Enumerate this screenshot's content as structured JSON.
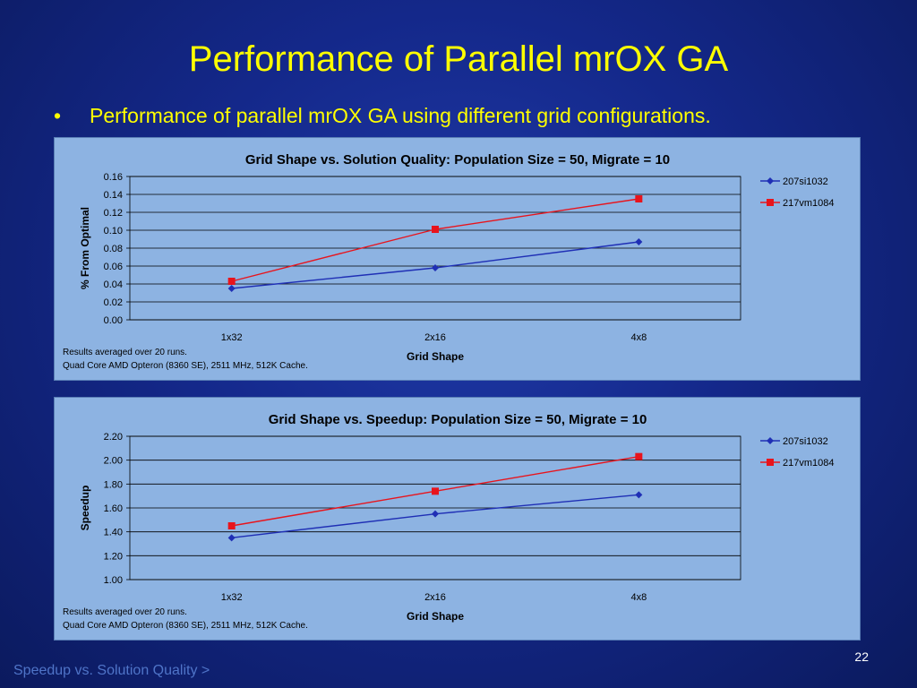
{
  "slide": {
    "title": "Performance of Parallel mrOX GA",
    "bullet": "Performance of parallel mrOX GA using different grid configurations.",
    "bullet_symbol": "•",
    "page_number": "22",
    "nav_link": "Speedup vs. Solution Quality >"
  },
  "chart_data": [
    {
      "type": "line",
      "title": "Grid Shape vs. Solution Quality: Population Size = 50, Migrate = 10",
      "xlabel": "Grid Shape",
      "ylabel": "% From Optimal",
      "categories": [
        "1x32",
        "2x16",
        "4x8"
      ],
      "ylim": [
        0,
        0.16
      ],
      "ystep": 0.02,
      "ydecimals": 2,
      "grid": true,
      "legend": "right",
      "series": [
        {
          "name": "207si1032",
          "values": [
            0.035,
            0.058,
            0.087
          ],
          "color": "#1f2fb5",
          "marker": "diamond"
        },
        {
          "name": "217vm1084",
          "values": [
            0.043,
            0.101,
            0.135
          ],
          "color": "#e8141c",
          "marker": "square"
        }
      ],
      "notes": [
        "Results averaged over 20 runs.",
        "Quad Core AMD Opteron (8360 SE), 2511 MHz, 512K Cache."
      ]
    },
    {
      "type": "line",
      "title": "Grid Shape vs. Speedup: Population Size = 50, Migrate = 10",
      "xlabel": "Grid Shape",
      "ylabel": "Speedup",
      "categories": [
        "1x32",
        "2x16",
        "4x8"
      ],
      "ylim": [
        1.0,
        2.2
      ],
      "ystep": 0.2,
      "ydecimals": 2,
      "grid": true,
      "legend": "right",
      "series": [
        {
          "name": "207si1032",
          "values": [
            1.35,
            1.55,
            1.71
          ],
          "color": "#1f2fb5",
          "marker": "diamond"
        },
        {
          "name": "217vm1084",
          "values": [
            1.45,
            1.74,
            2.03
          ],
          "color": "#e8141c",
          "marker": "square"
        }
      ],
      "notes": [
        "Results averaged over 20 runs.",
        "Quad Core AMD Opteron (8360 SE), 2511 MHz, 512K Cache."
      ]
    }
  ]
}
